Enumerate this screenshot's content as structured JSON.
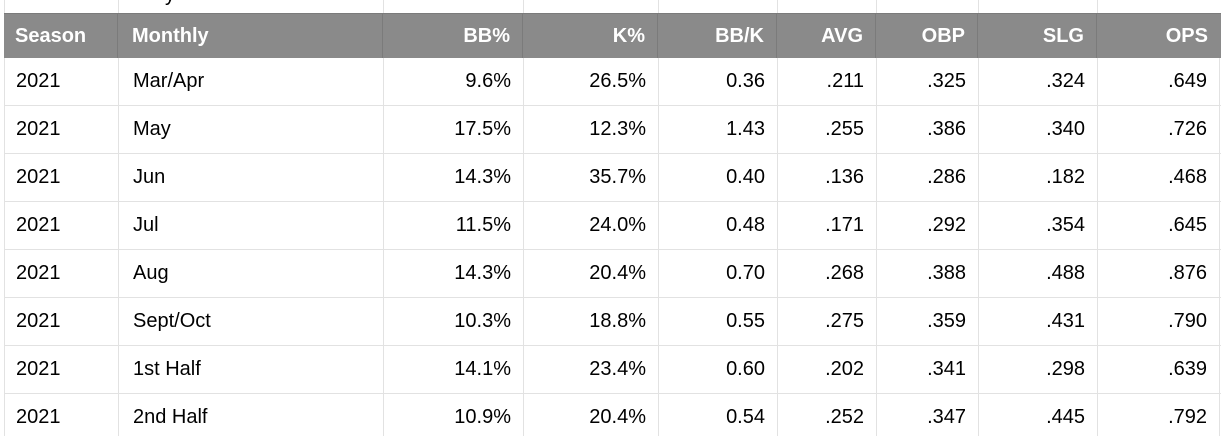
{
  "colors": {
    "header_bg": "#8a8a8a",
    "header_text": "#ffffff",
    "grid_line": "#e2e2e2",
    "row_text": "#000000",
    "row_bg": "#ffffff"
  },
  "clipped_row_above": {
    "fragment_text": "y"
  },
  "table": {
    "columns": [
      {
        "key": "season",
        "label": "Season",
        "align": "left"
      },
      {
        "key": "monthly",
        "label": "Monthly",
        "align": "left"
      },
      {
        "key": "bb_pct",
        "label": "BB%",
        "align": "right"
      },
      {
        "key": "k_pct",
        "label": "K%",
        "align": "right"
      },
      {
        "key": "bb_k",
        "label": "BB/K",
        "align": "right"
      },
      {
        "key": "avg",
        "label": "AVG",
        "align": "right"
      },
      {
        "key": "obp",
        "label": "OBP",
        "align": "right"
      },
      {
        "key": "slg",
        "label": "SLG",
        "align": "right"
      },
      {
        "key": "ops",
        "label": "OPS",
        "align": "right"
      }
    ],
    "rows": [
      [
        "2021",
        "Mar/Apr",
        "9.6%",
        "26.5%",
        "0.36",
        ".211",
        ".325",
        ".324",
        ".649"
      ],
      [
        "2021",
        "May",
        "17.5%",
        "12.3%",
        "1.43",
        ".255",
        ".386",
        ".340",
        ".726"
      ],
      [
        "2021",
        "Jun",
        "14.3%",
        "35.7%",
        "0.40",
        ".136",
        ".286",
        ".182",
        ".468"
      ],
      [
        "2021",
        "Jul",
        "11.5%",
        "24.0%",
        "0.48",
        ".171",
        ".292",
        ".354",
        ".645"
      ],
      [
        "2021",
        "Aug",
        "14.3%",
        "20.4%",
        "0.70",
        ".268",
        ".388",
        ".488",
        ".876"
      ],
      [
        "2021",
        "Sept/Oct",
        "10.3%",
        "18.8%",
        "0.55",
        ".275",
        ".359",
        ".431",
        ".790"
      ],
      [
        "2021",
        "1st Half",
        "14.1%",
        "23.4%",
        "0.60",
        ".202",
        ".341",
        ".298",
        ".639"
      ],
      [
        "2021",
        "2nd Half",
        "10.9%",
        "20.4%",
        "0.54",
        ".252",
        ".347",
        ".445",
        ".792"
      ]
    ]
  }
}
